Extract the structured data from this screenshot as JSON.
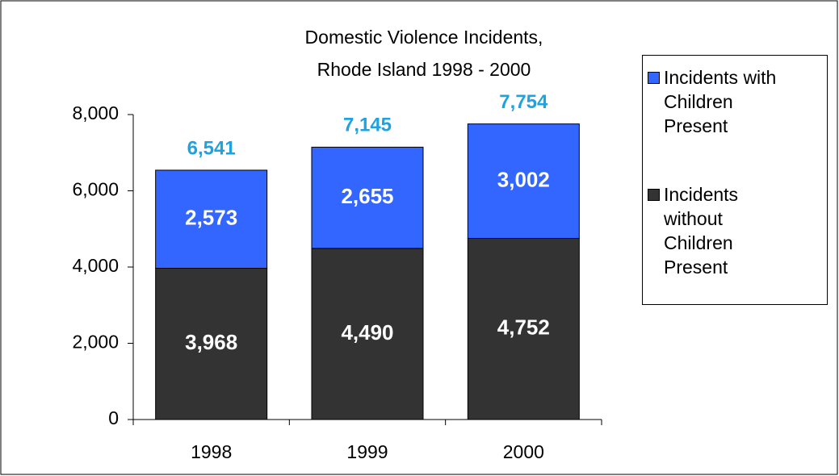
{
  "chart_data": {
    "type": "stacked_bar",
    "title": "Domestic Violence Incidents, Rhode Island 1998 - 2000",
    "categories": [
      "1998",
      "1999",
      "2000"
    ],
    "series": [
      {
        "name": "Incidents without Children Present",
        "color": "#333333",
        "values": [
          3968,
          4490,
          4752
        ],
        "value_labels": [
          "3,968",
          "4,490",
          "4,752"
        ]
      },
      {
        "name": "Incidents with Children Present",
        "color": "#3366ff",
        "values": [
          2573,
          2655,
          3002
        ],
        "value_labels": [
          "2,573",
          "2,655",
          "3,002"
        ]
      }
    ],
    "totals": [
      6541,
      7145,
      7754
    ],
    "total_labels": [
      "6,541",
      "7,145",
      "7,754"
    ],
    "total_color": "#1fa3e0",
    "ylim": [
      0,
      8000
    ],
    "yticks": [
      0,
      {
        "value": 2000,
        "label": "2,000"
      },
      {
        "value": 4000,
        "label": "4,000"
      },
      {
        "value": 6000,
        "label": "6,000"
      },
      {
        "value": 8000,
        "label": "8,000"
      }
    ],
    "legend": "right"
  }
}
